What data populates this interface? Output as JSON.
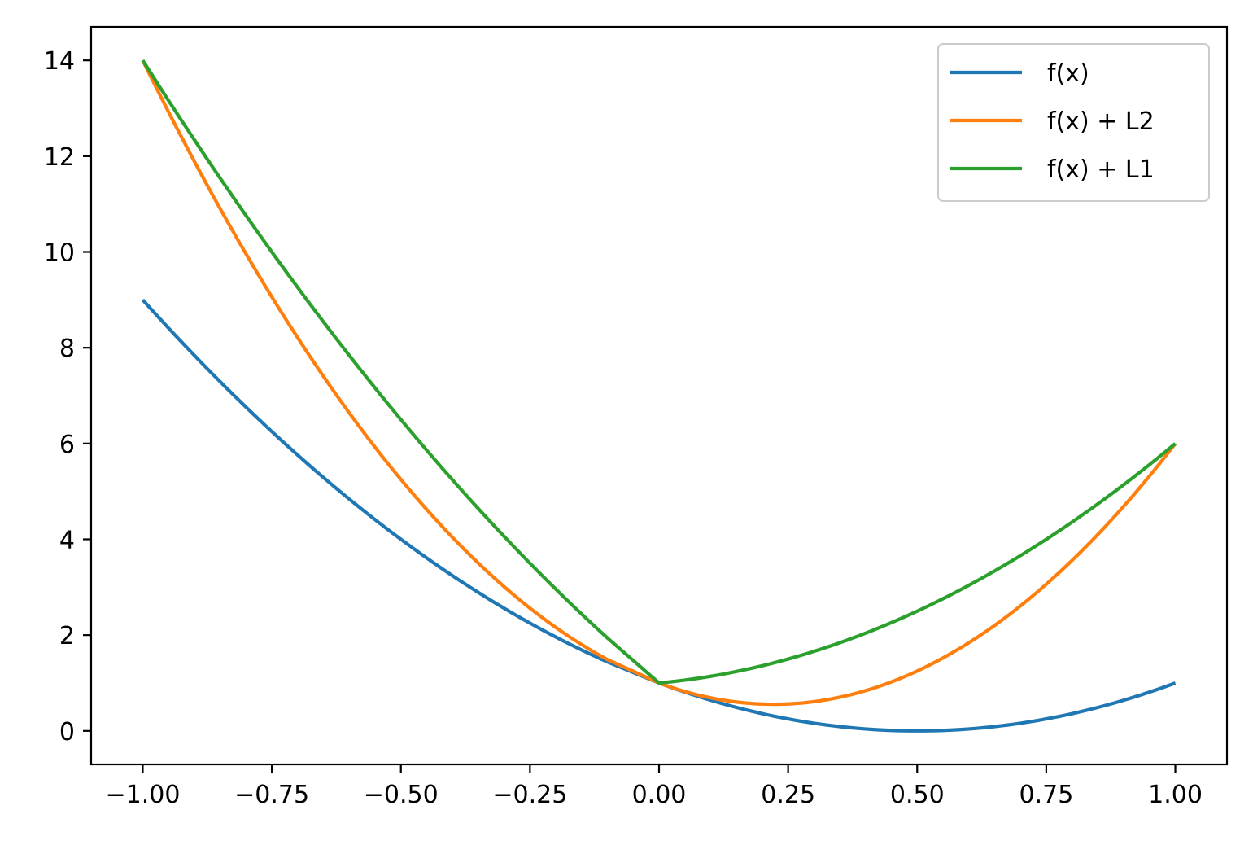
{
  "chart_data": {
    "type": "line",
    "title": "",
    "xlabel": "",
    "ylabel": "",
    "xlim": [
      -1.1,
      1.1
    ],
    "ylim": [
      -0.7,
      14.7
    ],
    "grid": false,
    "legend_position": "top-right",
    "xticks": [
      -1.0,
      -0.75,
      -0.5,
      -0.25,
      0.0,
      0.25,
      0.5,
      0.75,
      1.0
    ],
    "xtick_labels": [
      "−1.00",
      "−0.75",
      "−0.50",
      "−0.25",
      "0.00",
      "0.25",
      "0.50",
      "0.75",
      "1.00"
    ],
    "yticks": [
      0,
      2,
      4,
      6,
      8,
      10,
      12,
      14
    ],
    "ytick_labels": [
      "0",
      "2",
      "4",
      "6",
      "8",
      "10",
      "12",
      "14"
    ],
    "x": [
      -1.0,
      -0.9,
      -0.8,
      -0.7,
      -0.6,
      -0.5,
      -0.4,
      -0.3,
      -0.2,
      -0.1,
      0.0,
      0.1,
      0.2,
      0.3,
      0.4,
      0.5,
      0.6,
      0.7,
      0.8,
      0.9,
      1.0
    ],
    "series": [
      {
        "name": "f(x)",
        "color": "#1f77b4",
        "values": [
          9.0,
          7.84,
          6.76,
          5.76,
          4.84,
          4.0,
          3.24,
          2.56,
          1.96,
          1.44,
          1.0,
          0.64,
          0.36,
          0.16,
          0.04,
          0.0,
          0.04,
          0.16,
          0.36,
          0.64,
          1.0
        ]
      },
      {
        "name": "f(x) + L2",
        "color": "#ff7f0e",
        "values": [
          14.0,
          11.89,
          9.96,
          8.21,
          6.64,
          5.25,
          4.04,
          3.01,
          2.16,
          1.49,
          1.0,
          0.69,
          0.56,
          0.61,
          0.84,
          1.25,
          1.84,
          2.61,
          3.56,
          4.69,
          6.0
        ]
      },
      {
        "name": "f(x) + L1",
        "color": "#2ca02c",
        "values": [
          14.0,
          12.34,
          10.76,
          9.26,
          7.84,
          6.5,
          5.24,
          4.06,
          2.96,
          1.94,
          1.0,
          1.14,
          1.36,
          1.66,
          2.04,
          2.5,
          3.04,
          3.66,
          4.36,
          5.14,
          6.0
        ]
      }
    ]
  }
}
